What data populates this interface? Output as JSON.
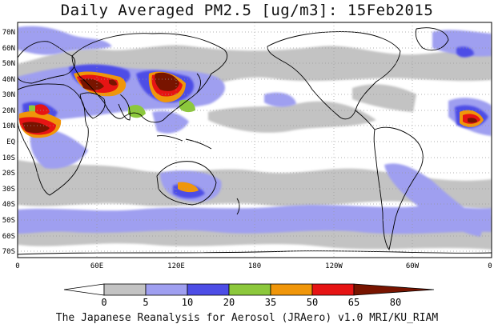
{
  "title": "Daily Averaged PM2.5 [ug/m3]: 15Feb2015",
  "footer": "The Japanese Reanalysis for Aerosol (JRAero) v1.0 MRI/KU_RIAM",
  "lat_labels": [
    "70N",
    "60N",
    "50N",
    "40N",
    "30N",
    "20N",
    "10N",
    "EQ",
    "10S",
    "20S",
    "30S",
    "40S",
    "50S",
    "60S",
    "70S"
  ],
  "lon_labels": [
    "0",
    "60E",
    "120E",
    "180",
    "120W",
    "60W",
    "0"
  ],
  "colorbar": {
    "bounds": [
      "0",
      "5",
      "10",
      "20",
      "35",
      "50",
      "65",
      "80"
    ],
    "colors": [
      "#ffffff",
      "#c3c3c3",
      "#9f9ff0",
      "#4d4de6",
      "#8cc83c",
      "#f0960a",
      "#e61414",
      "#781400"
    ]
  }
}
